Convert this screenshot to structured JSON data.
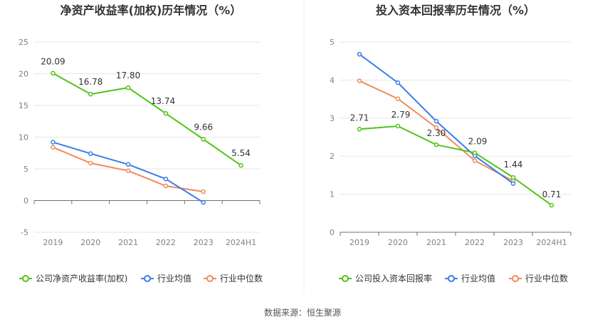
{
  "source_label": "数据来源：恒生聚源",
  "chart_data": [
    {
      "type": "line",
      "title": "净资产收益率(加权)历年情况（%）",
      "categories": [
        "2019",
        "2020",
        "2021",
        "2022",
        "2023",
        "2024H1"
      ],
      "ylim": [
        -5,
        25
      ],
      "yticks": [
        -5,
        0,
        5,
        10,
        15,
        20,
        25
      ],
      "grid": true,
      "legend_position": "bottom",
      "series": [
        {
          "name": "公司净资产收益率(加权)",
          "color": "#52c41a",
          "values": [
            20.09,
            16.78,
            17.8,
            13.74,
            9.66,
            5.54
          ],
          "labels": [
            "20.09",
            "16.78",
            "17.80",
            "13.74",
            "9.66",
            "5.54"
          ]
        },
        {
          "name": "行业均值",
          "color": "#3a7ee8",
          "values": [
            9.2,
            7.4,
            5.7,
            3.4,
            -0.3,
            null
          ]
        },
        {
          "name": "行业中位数",
          "color": "#f08a5d",
          "values": [
            8.4,
            5.9,
            4.7,
            2.3,
            1.4,
            null
          ]
        }
      ]
    },
    {
      "type": "line",
      "title": "投入资本回报率历年情况（%）",
      "categories": [
        "2019",
        "2020",
        "2021",
        "2022",
        "2023",
        "2024H1"
      ],
      "ylim": [
        0,
        5
      ],
      "yticks": [
        0,
        1,
        2,
        3,
        4,
        5
      ],
      "grid": true,
      "legend_position": "bottom",
      "series": [
        {
          "name": "公司投入资本回报率",
          "color": "#52c41a",
          "values": [
            2.71,
            2.79,
            2.3,
            2.09,
            1.44,
            0.71
          ],
          "labels": [
            "2.71",
            "2.79",
            "2.30",
            "2.09",
            "1.44",
            "0.71"
          ]
        },
        {
          "name": "行业均值",
          "color": "#3a7ee8",
          "values": [
            4.68,
            3.93,
            2.92,
            2.01,
            1.28,
            null
          ]
        },
        {
          "name": "行业中位数",
          "color": "#f08a5d",
          "values": [
            3.98,
            3.51,
            2.75,
            1.88,
            1.35,
            null
          ]
        }
      ]
    }
  ]
}
